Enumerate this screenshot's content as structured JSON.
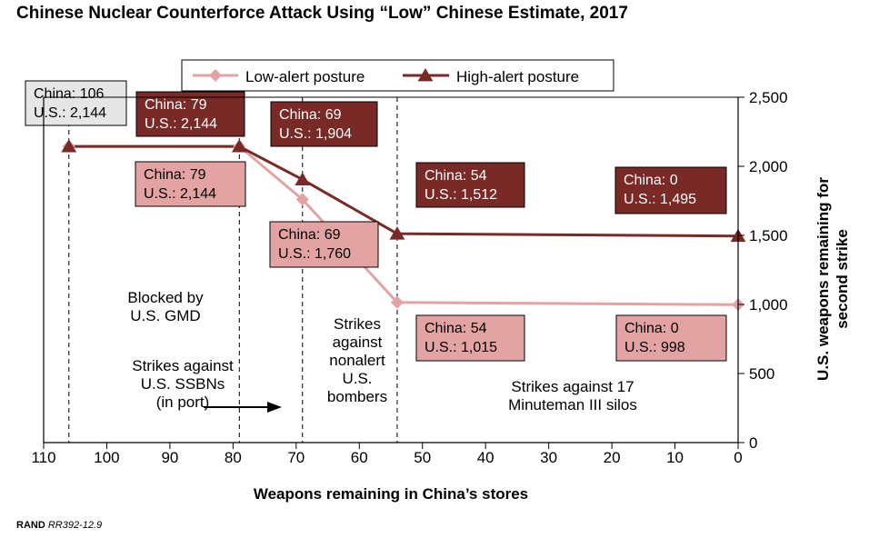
{
  "title": "Chinese Nuclear Counterforce Attack Using “Low” Chinese Estimate, 2017",
  "source": {
    "org": "RAND",
    "id": "RR392-12.9"
  },
  "chart_data": {
    "type": "line",
    "title": "Chinese Nuclear Counterforce Attack Using “Low” Chinese Estimate, 2017",
    "xlabel": "Weapons remaining in China’s stores",
    "ylabel": "U.S. weapons remaining for second strike",
    "xlim": [
      110,
      0
    ],
    "ylim": [
      0,
      2500
    ],
    "x_ticks": [
      110,
      100,
      90,
      80,
      70,
      60,
      50,
      40,
      30,
      20,
      10,
      0
    ],
    "y_ticks": [
      0,
      500,
      1000,
      1500,
      2000,
      2500
    ],
    "y_tick_labels": [
      "0",
      "500",
      "1,000",
      "1,500",
      "2,000",
      "2,500"
    ],
    "legend_position": "top-center",
    "series": [
      {
        "name": "Low-alert posture",
        "color": "#e3a3a3",
        "marker": "diamond",
        "points": [
          [
            106,
            2144
          ],
          [
            79,
            2144
          ],
          [
            69,
            1760
          ],
          [
            54,
            1015
          ],
          [
            0,
            998
          ]
        ]
      },
      {
        "name": "High-alert posture",
        "color": "#7a2a26",
        "marker": "triangle",
        "points": [
          [
            106,
            2144
          ],
          [
            79,
            2144
          ],
          [
            69,
            1904
          ],
          [
            54,
            1512
          ],
          [
            0,
            1495
          ]
        ]
      }
    ],
    "phase_lines": [
      106,
      79,
      69,
      54
    ],
    "callouts": [
      {
        "id": "start",
        "style": "gray",
        "lines": [
          "China: 106",
          "U.S.: 2,144"
        ]
      },
      {
        "id": "high-79",
        "style": "dark",
        "lines": [
          "China: 79",
          "U.S.: 2,144"
        ]
      },
      {
        "id": "low-79",
        "style": "light",
        "lines": [
          "China: 79",
          "U.S.: 2,144"
        ]
      },
      {
        "id": "high-69",
        "style": "dark",
        "lines": [
          "China: 69",
          "U.S.: 1,904"
        ]
      },
      {
        "id": "low-69",
        "style": "light",
        "lines": [
          "China: 69",
          "U.S.: 1,760"
        ]
      },
      {
        "id": "high-54",
        "style": "dark",
        "lines": [
          "China: 54",
          "U.S.: 1,512"
        ]
      },
      {
        "id": "low-54",
        "style": "light",
        "lines": [
          "China: 54",
          "U.S.: 1,015"
        ]
      },
      {
        "id": "high-0",
        "style": "dark",
        "lines": [
          "China: 0",
          "U.S.: 1,495"
        ]
      },
      {
        "id": "low-0",
        "style": "light",
        "lines": [
          "China: 0",
          "U.S.: 998"
        ]
      }
    ],
    "regions": [
      {
        "id": "gmd",
        "lines": [
          "Blocked by",
          "U.S. GMD"
        ]
      },
      {
        "id": "ssbn",
        "lines": [
          "Strikes against",
          "U.S. SSBNs",
          "(in port)"
        ]
      },
      {
        "id": "bombers",
        "lines": [
          "Strikes",
          "against",
          "nonalert",
          "U.S.",
          "bombers"
        ]
      },
      {
        "id": "minuteman",
        "lines": [
          "Strikes against 17",
          "Minuteman III silos"
        ]
      }
    ]
  }
}
